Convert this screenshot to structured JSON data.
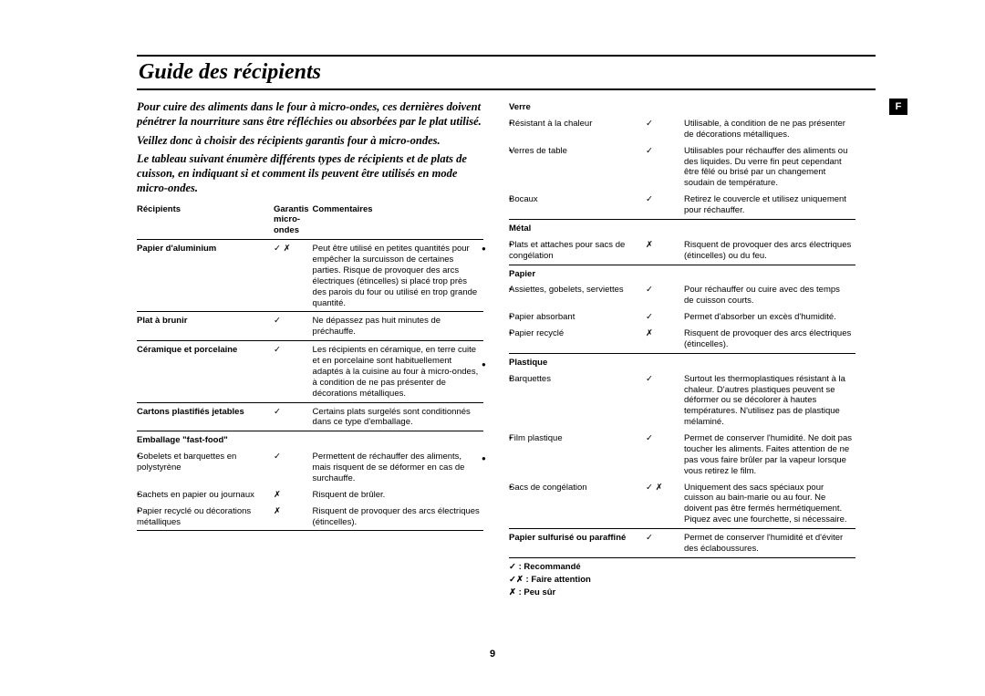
{
  "page": {
    "title": "Guide des récipients",
    "sidemark": "F",
    "pagenum": "9"
  },
  "intro": {
    "p1": "Pour cuire des aliments dans le four à micro-ondes, ces dernières doivent pénétrer la nourriture sans être réfléchies ou absorbées par le plat utilisé.",
    "p2": "Veillez donc à choisir des récipients garantis four à micro-ondes.",
    "p3": "Le tableau suivant énumère différents types de récipients et de plats de cuisson, en indiquant si et comment ils peuvent être utilisés en mode micro-ondes."
  },
  "tableLeft": {
    "headers": {
      "r": "Récipients",
      "g": "Garantis micro-ondes",
      "c": "Commentaires"
    },
    "rows": [
      {
        "r": "Papier d'aluminium",
        "rb": true,
        "g": "✓ ✗",
        "c": "Peut être utilisé en petites quantités pour empêcher la surcuisson de certaines parties. Risque de provoquer des arcs électriques (étincelles) si placé trop près des parois du four ou utilisé en trop grande quantité.",
        "sec": true
      },
      {
        "r": "Plat à brunir",
        "rb": true,
        "g": "✓",
        "c": "Ne dépassez pas huit minutes de préchauffe.",
        "sec": true
      },
      {
        "r": "Céramique et porcelaine",
        "rb": true,
        "g": "✓",
        "c": "Les récipients en céramique, en terre cuite et en porcelaine sont habituellement adaptés à la cuisine au four à micro-ondes, à condition de ne pas présenter de décorations métalliques.",
        "sec": true
      },
      {
        "r": "Cartons plastifiés jetables",
        "rb": true,
        "g": "✓",
        "c": "Certains plats surgelés sont conditionnés dans ce type d'emballage.",
        "sec": true
      },
      {
        "r": "Emballage \"fast-food\"",
        "rb": true,
        "g": "",
        "c": "",
        "sec": true
      },
      {
        "r": "Gobelets et barquettes en polystyrène",
        "bullet": true,
        "g": "✓",
        "c": "Permettent de réchauffer des aliments, mais risquent de se déformer en cas de surchauffe."
      },
      {
        "r": "Sachets en papier ou journaux",
        "bullet": true,
        "g": "✗",
        "c": "Risquent de brûler."
      },
      {
        "r": "Papier recyclé ou décorations métalliques",
        "bullet": true,
        "g": "✗",
        "c": "Risquent de provoquer des arcs électriques (étincelles)."
      }
    ],
    "endRule": true
  },
  "tableRight": {
    "rows": [
      {
        "r": "Verre",
        "rb": true,
        "g": "",
        "c": "",
        "sec": false
      },
      {
        "r": "Résistant à la chaleur",
        "bullet": true,
        "g": "✓",
        "c": "Utilisable, à condition de ne pas présenter de décorations métalliques."
      },
      {
        "r": "Verres de table",
        "bullet": true,
        "g": "✓",
        "c": "Utilisables pour réchauffer des aliments ou des liquides. Du verre fin peut cependant être fêlé ou brisé par un changement soudain de température."
      },
      {
        "r": "Bocaux",
        "bullet": true,
        "g": "✓",
        "c": "Retirez le couvercle et utilisez uniquement pour réchauffer."
      },
      {
        "r": "Métal",
        "rb": true,
        "g": "",
        "c": "",
        "sec": true,
        "dot": true
      },
      {
        "r": "Plats et attaches pour sacs de congélation",
        "bullet": true,
        "g": "✗",
        "c": "Risquent de provoquer des arcs électriques (étincelles) ou du feu."
      },
      {
        "r": "Papier",
        "rb": true,
        "g": "",
        "c": "",
        "sec": true
      },
      {
        "r": "Assiettes, gobelets, serviettes",
        "bullet": true,
        "g": "✓",
        "c": "Pour réchauffer ou cuire avec des temps de cuisson courts."
      },
      {
        "r": "Papier absorbant",
        "bullet": true,
        "g": "✓",
        "c": "Permet d'absorber un excès d'humidité."
      },
      {
        "r": "Papier recyclé",
        "bullet": true,
        "g": "✗",
        "c": "Risquent de provoquer des arcs électriques (étincelles)."
      },
      {
        "r": "Plastique",
        "rb": true,
        "g": "",
        "c": "",
        "sec": true
      },
      {
        "r": "Barquettes",
        "bullet": true,
        "g": "✓",
        "c": "Surtout les thermoplastiques résistant à la chaleur. D'autres plastiques peuvent se déformer ou se décolorer à hautes températures. N'utilisez pas de plastique mélaminé.",
        "dot": true
      },
      {
        "r": "Film plastique",
        "bullet": true,
        "g": "✓",
        "c": "Permet de conserver l'humidité. Ne doit pas toucher les aliments. Faites attention de ne pas vous faire brûler par la vapeur lorsque vous retirez le film."
      },
      {
        "r": "Sacs de congélation",
        "bullet": true,
        "g": "✓ ✗",
        "c": "Uniquement des sacs spéciaux pour cuisson au bain-marie ou au four. Ne doivent pas être fermés hermétiquement. Piquez avec une fourchette, si nécessaire.",
        "dot": true
      },
      {
        "r": "Papier sulfurisé ou paraffiné",
        "rb": true,
        "g": "✓",
        "c": "Permet de conserver l'humidité et d'éviter des éclaboussures.",
        "sec": true
      }
    ],
    "endRule": true
  },
  "legend": {
    "l1": "✓    : Recommandé",
    "l2": "✓✗ : Faire attention",
    "l3": "✗    : Peu sûr"
  }
}
